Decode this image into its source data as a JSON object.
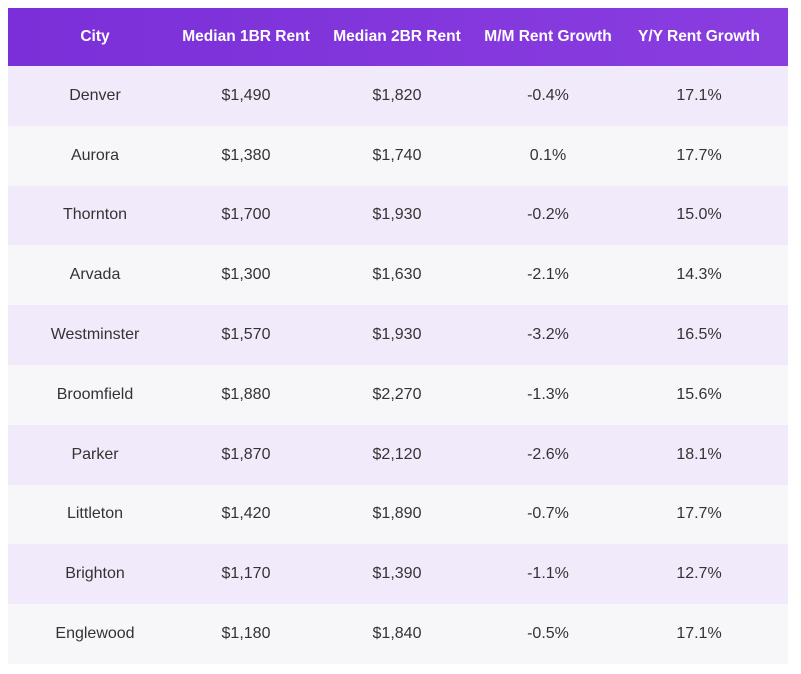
{
  "table": {
    "header": [
      "City",
      "Median 1BR Rent",
      "Median 2BR Rent",
      "M/M Rent Growth",
      "Y/Y Rent Growth"
    ],
    "rows": [
      [
        "Denver",
        "$1,490",
        "$1,820",
        "-0.4%",
        "17.1%"
      ],
      [
        "Aurora",
        "$1,380",
        "$1,740",
        "0.1%",
        "17.7%"
      ],
      [
        "Thornton",
        "$1,700",
        "$1,930",
        "-0.2%",
        "15.0%"
      ],
      [
        "Arvada",
        "$1,300",
        "$1,630",
        "-2.1%",
        "14.3%"
      ],
      [
        "Westminster",
        "$1,570",
        "$1,930",
        "-3.2%",
        "16.5%"
      ],
      [
        "Broomfield",
        "$1,880",
        "$2,270",
        "-1.3%",
        "15.6%"
      ],
      [
        "Parker",
        "$1,870",
        "$2,120",
        "-2.6%",
        "18.1%"
      ],
      [
        "Littleton",
        "$1,420",
        "$1,890",
        "-0.7%",
        "17.7%"
      ],
      [
        "Brighton",
        "$1,170",
        "$1,390",
        "-1.1%",
        "12.7%"
      ],
      [
        "Englewood",
        "$1,180",
        "$1,840",
        "-0.5%",
        "17.1%"
      ]
    ]
  }
}
